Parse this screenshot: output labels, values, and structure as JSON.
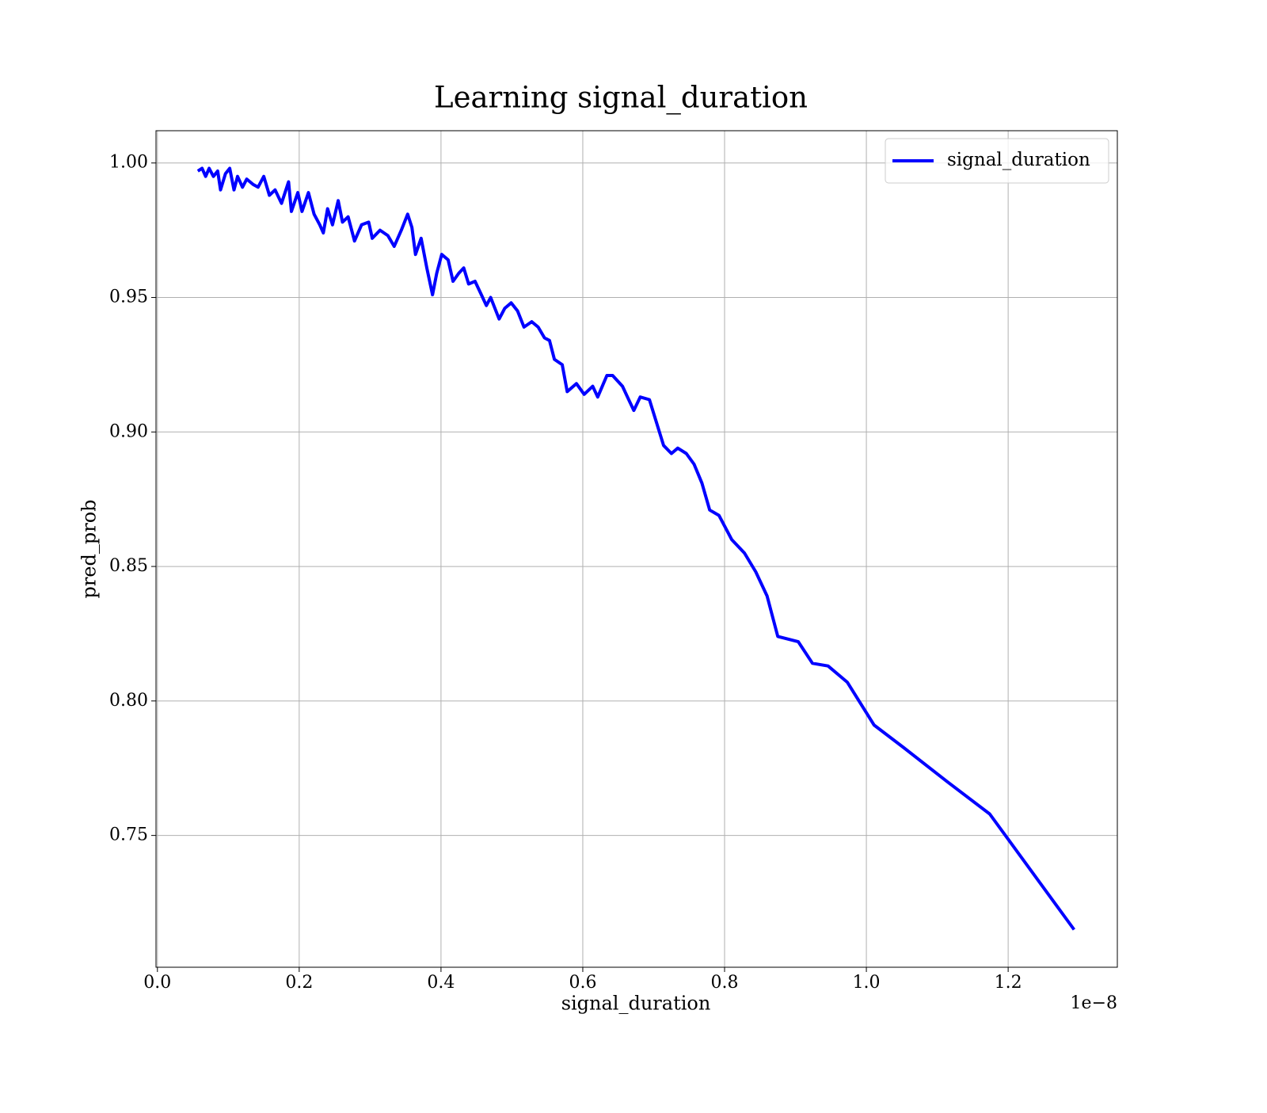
{
  "chart_data": {
    "type": "line",
    "title": "Learning signal_duration",
    "x_label": "signal_duration",
    "y_label": "pred_prob",
    "x_offset_label": "1e−8",
    "x": [
      0.057,
      0.063,
      0.068,
      0.073,
      0.079,
      0.085,
      0.089,
      0.096,
      0.102,
      0.108,
      0.113,
      0.12,
      0.126,
      0.135,
      0.142,
      0.15,
      0.158,
      0.166,
      0.175,
      0.185,
      0.189,
      0.198,
      0.204,
      0.213,
      0.221,
      0.229,
      0.234,
      0.24,
      0.247,
      0.255,
      0.261,
      0.269,
      0.278,
      0.288,
      0.298,
      0.303,
      0.314,
      0.325,
      0.334,
      0.344,
      0.353,
      0.359,
      0.364,
      0.372,
      0.38,
      0.388,
      0.394,
      0.401,
      0.41,
      0.417,
      0.425,
      0.432,
      0.439,
      0.448,
      0.457,
      0.464,
      0.47,
      0.482,
      0.49,
      0.499,
      0.508,
      0.517,
      0.528,
      0.537,
      0.546,
      0.553,
      0.56,
      0.571,
      0.578,
      0.591,
      0.602,
      0.614,
      0.621,
      0.634,
      0.642,
      0.656,
      0.663,
      0.672,
      0.681,
      0.694,
      0.714,
      0.725,
      0.734,
      0.746,
      0.757,
      0.768,
      0.779,
      0.792,
      0.81,
      0.828,
      0.844,
      0.86,
      0.875,
      0.904,
      0.924,
      0.946,
      0.973,
      1.011,
      1.051,
      1.114,
      1.174,
      1.293
    ],
    "series": [
      {
        "name": "signal_duration",
        "color": "#0000ff",
        "values": [
          0.997,
          0.998,
          0.995,
          0.998,
          0.995,
          0.997,
          0.99,
          0.996,
          0.998,
          0.99,
          0.995,
          0.991,
          0.994,
          0.992,
          0.991,
          0.995,
          0.988,
          0.99,
          0.985,
          0.993,
          0.982,
          0.989,
          0.982,
          0.989,
          0.981,
          0.977,
          0.974,
          0.983,
          0.977,
          0.986,
          0.978,
          0.98,
          0.971,
          0.977,
          0.978,
          0.972,
          0.975,
          0.973,
          0.969,
          0.975,
          0.981,
          0.976,
          0.966,
          0.972,
          0.961,
          0.951,
          0.959,
          0.966,
          0.964,
          0.956,
          0.959,
          0.961,
          0.955,
          0.956,
          0.951,
          0.947,
          0.95,
          0.942,
          0.946,
          0.948,
          0.945,
          0.939,
          0.941,
          0.939,
          0.935,
          0.934,
          0.927,
          0.925,
          0.915,
          0.918,
          0.914,
          0.917,
          0.913,
          0.921,
          0.921,
          0.917,
          0.913,
          0.908,
          0.913,
          0.912,
          0.895,
          0.892,
          0.894,
          0.892,
          0.888,
          0.881,
          0.871,
          0.869,
          0.86,
          0.855,
          0.848,
          0.839,
          0.824,
          0.822,
          0.814,
          0.813,
          0.807,
          0.791,
          0.783,
          0.77,
          0.758,
          0.715
        ]
      }
    ],
    "xlim": [
      -0.002,
      1.354
    ],
    "ylim": [
      0.701,
      1.012
    ],
    "xticks": [
      {
        "value": 0.0,
        "label": "0.0"
      },
      0.2,
      0.4,
      0.6,
      0.8,
      {
        "value": 1.0,
        "label": "1.0"
      },
      1.2
    ],
    "yticks": [
      0.75,
      {
        "value": 0.8,
        "label": "0.80"
      },
      0.85,
      {
        "value": 0.9,
        "label": "0.90"
      },
      0.95,
      {
        "value": 1.0,
        "label": "1.00"
      }
    ],
    "grid": true,
    "legend": "upper right"
  }
}
